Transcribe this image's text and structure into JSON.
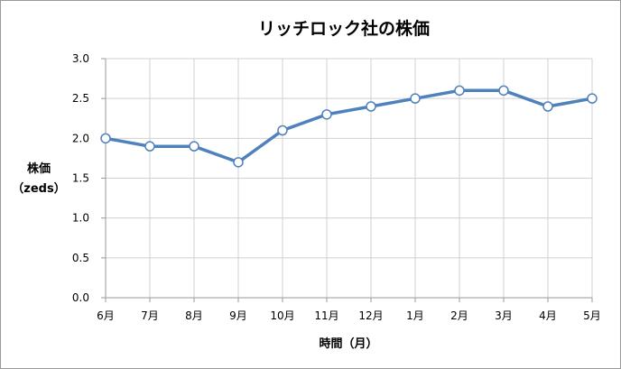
{
  "chart_data": {
    "type": "line",
    "title": "リッチロック社の株価",
    "xlabel": "時間（月）",
    "ylabel": [
      "株価",
      "（zeds）"
    ],
    "categories": [
      "6月",
      "7月",
      "8月",
      "9月",
      "10月",
      "11月",
      "12月",
      "1月",
      "2月",
      "3月",
      "4月",
      "5月"
    ],
    "series": [
      {
        "values": [
          2.0,
          1.9,
          1.9,
          1.7,
          2.1,
          2.3,
          2.4,
          2.5,
          2.6,
          2.6,
          2.4,
          2.5
        ]
      }
    ],
    "ylim": [
      0,
      3.0
    ],
    "y_ticks": [
      "0.0",
      "0.5",
      "1.0",
      "1.5",
      "2.0",
      "2.5",
      "3.0"
    ],
    "grid": true,
    "legend": "none",
    "colors": {
      "line": "#4f81bd",
      "marker_fill": "#ffffff",
      "grid": "#d0d0d0",
      "axis": "#9a9a9a"
    }
  }
}
